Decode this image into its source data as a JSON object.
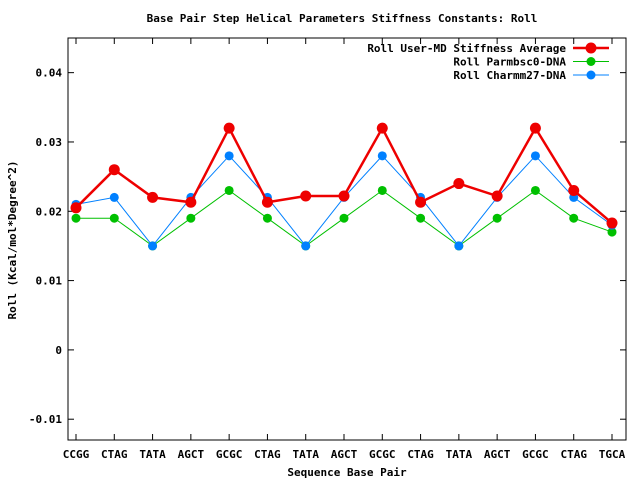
{
  "chart_data": {
    "type": "line",
    "title": "Base Pair Step Helical Parameters Stiffness Constants: Roll",
    "xlabel": "Sequence Base Pair",
    "ylabel": "Roll (Kcal/mol*Degree^2)",
    "categories": [
      "CCGG",
      "CTAG",
      "TATA",
      "AGCT",
      "GCGC",
      "CTAG",
      "TATA",
      "AGCT",
      "GCGC",
      "CTAG",
      "TATA",
      "AGCT",
      "GCGC",
      "CTAG",
      "TGCA"
    ],
    "ylim": [
      -0.013,
      0.045
    ],
    "yticks": [
      -0.01,
      0,
      0.01,
      0.02,
      0.03,
      0.04
    ],
    "ytick_labels": [
      "-0.01",
      "0",
      "0.01",
      "0.02",
      "0.03",
      "0.04"
    ],
    "grid": false,
    "legend_position": "top-right",
    "series": [
      {
        "name": "Roll User-MD Stiffness Average",
        "color": "#ee0000",
        "values": [
          0.0205,
          0.026,
          0.022,
          0.0213,
          0.032,
          0.0213,
          0.0222,
          0.0222,
          0.032,
          0.0213,
          0.024,
          0.0222,
          0.032,
          0.023,
          0.0183
        ]
      },
      {
        "name": "Roll Parmbsc0-DNA",
        "color": "#00c000",
        "values": [
          0.019,
          0.019,
          0.015,
          0.019,
          0.023,
          0.019,
          0.015,
          0.019,
          0.023,
          0.019,
          0.015,
          0.019,
          0.023,
          0.019,
          0.017
        ]
      },
      {
        "name": "Roll Charmm27-DNA",
        "color": "#0080ff",
        "values": [
          0.021,
          0.022,
          0.015,
          0.022,
          0.028,
          0.022,
          0.015,
          0.022,
          0.028,
          0.022,
          0.015,
          0.022,
          0.028,
          0.022,
          0.018
        ]
      }
    ]
  }
}
